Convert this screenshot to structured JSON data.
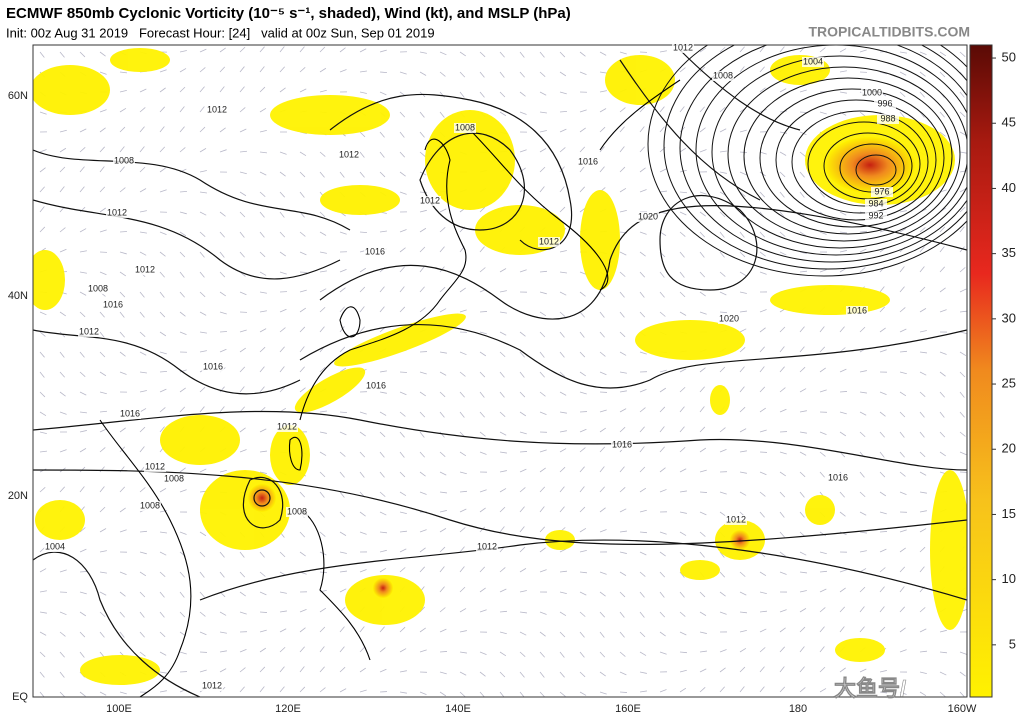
{
  "header": {
    "title": "ECMWF 850mb Cyclonic Vorticity (10⁻⁵ s⁻¹, shaded), Wind (kt), and MSLP (hPa)",
    "subtitle": "Init: 00z Aug 31 2019   Forecast Hour: [24]   valid at 00z Sun, Sep 01 2019",
    "site": "TROPICALTIDBITS.COM"
  },
  "map": {
    "lat_labels": [
      "60N",
      "40N",
      "20N",
      "EQ"
    ],
    "lon_labels": [
      "100E",
      "120E",
      "140E",
      "160E",
      "180",
      "160W"
    ],
    "isobar_labels": [
      1012,
      1004,
      1008,
      1000,
      996,
      988,
      976,
      984,
      992,
      1012,
      1008,
      1012,
      1016,
      1008,
      1012,
      1020,
      1012,
      1012,
      1016,
      1012,
      1008,
      1016,
      1012,
      1020,
      1016,
      1016,
      1016,
      1016,
      1012,
      1016,
      1012,
      1008,
      1016,
      1008,
      1008,
      1012,
      1004,
      1012,
      1012
    ]
  },
  "colorbar": {
    "lim": [
      1,
      51
    ],
    "ticks": [
      5,
      10,
      15,
      20,
      25,
      30,
      35,
      40,
      45,
      50
    ]
  }
}
